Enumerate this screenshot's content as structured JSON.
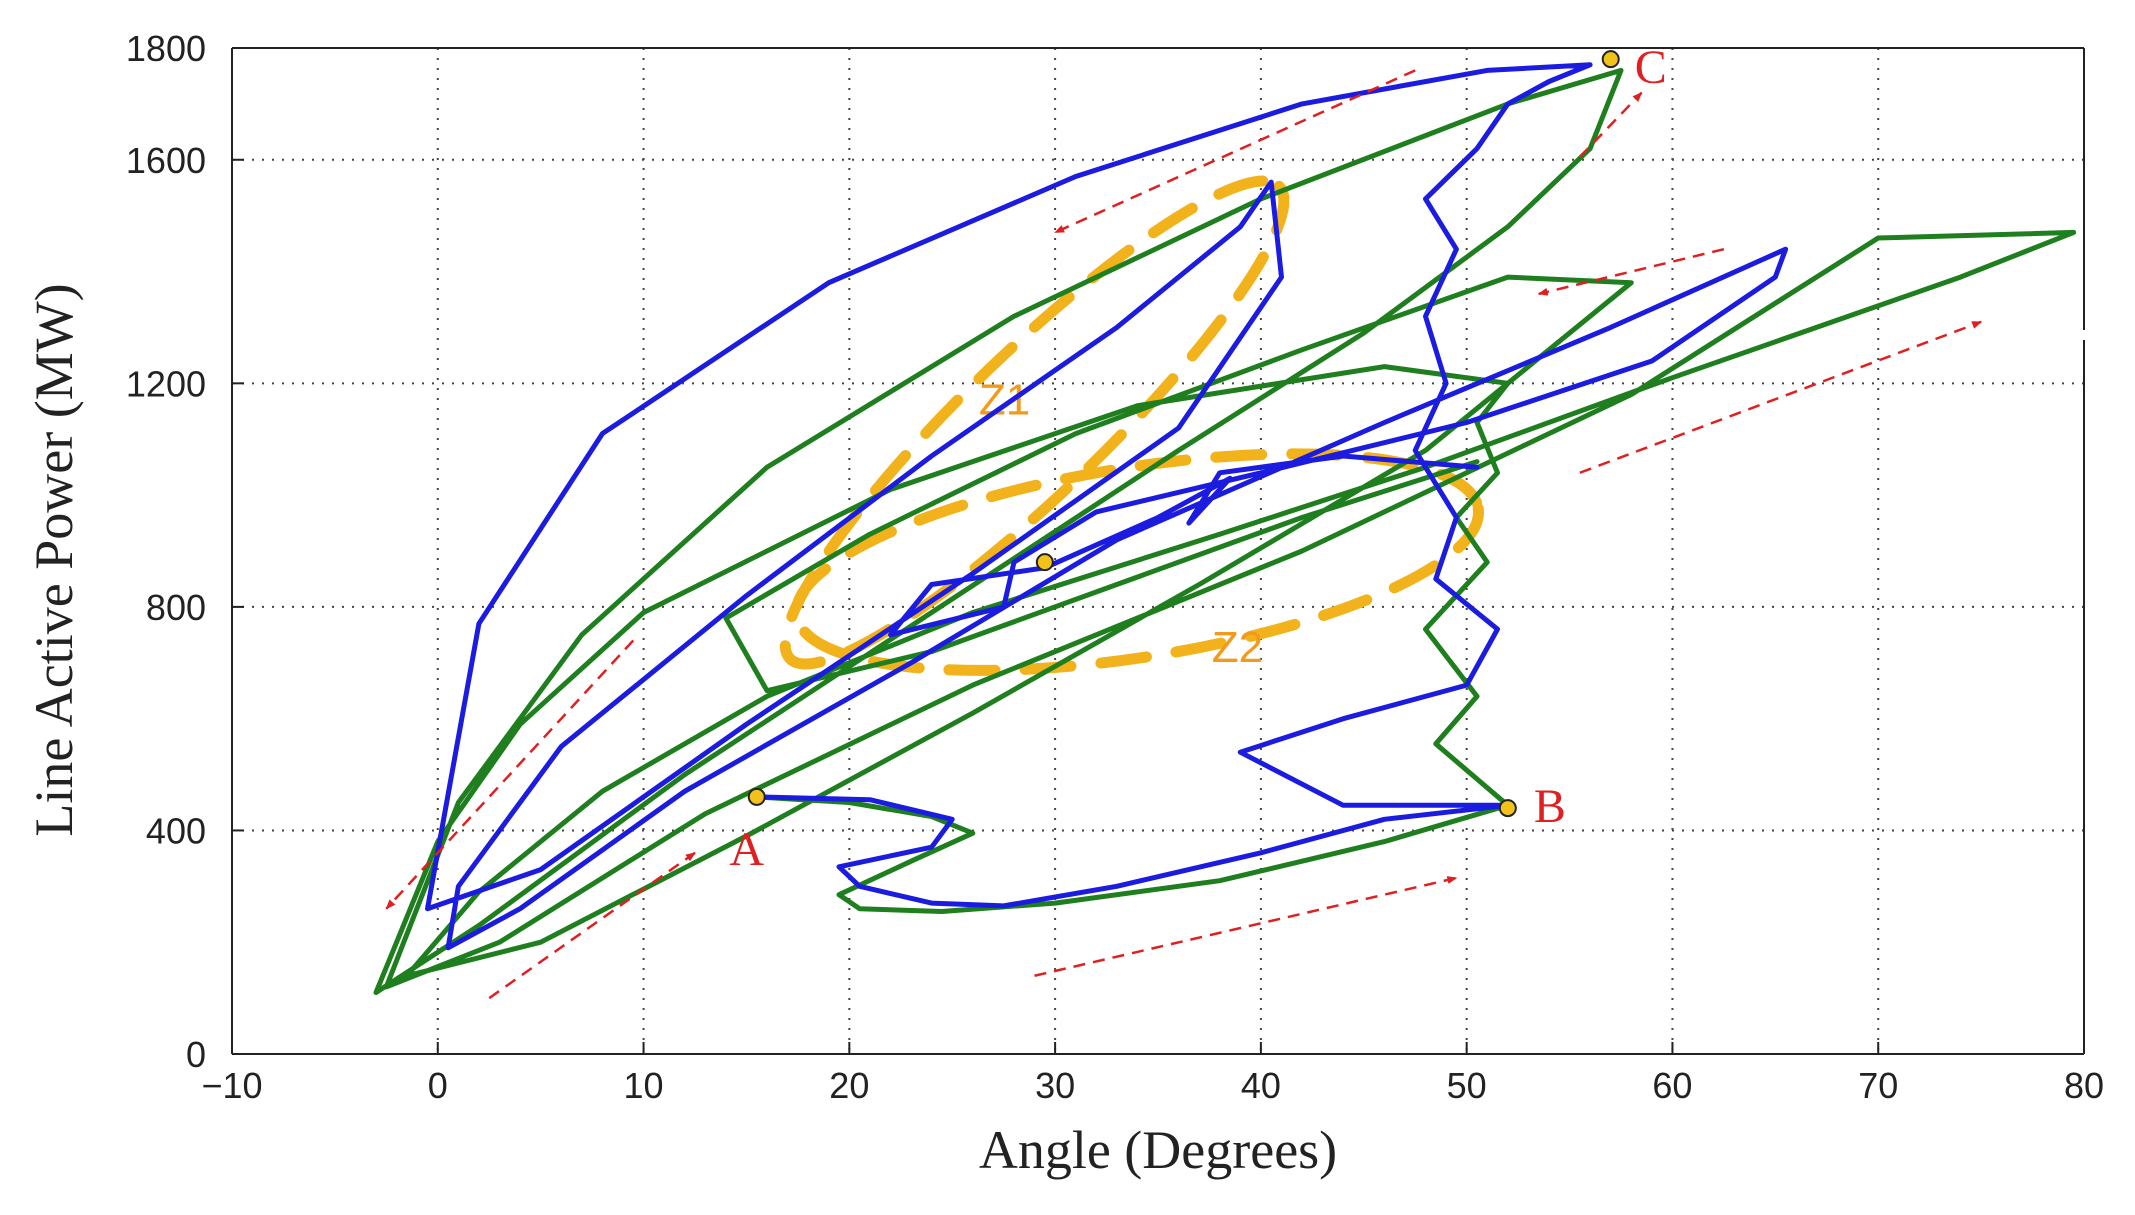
{
  "chart_data": {
    "type": "line",
    "title": "",
    "xlabel": "Angle (Degrees)",
    "ylabel": "Line Active Power (MW)",
    "xlim": [
      -10,
      80
    ],
    "ylim": [
      0,
      1800
    ],
    "grid": true,
    "x_ticks": [
      -10,
      0,
      10,
      20,
      30,
      40,
      50,
      60,
      70,
      80
    ],
    "y_ticks": [
      0,
      400,
      800,
      1200,
      1600,
      1800
    ],
    "x_tick_labels": [
      "−10",
      "0",
      "10",
      "20",
      "30",
      "40",
      "50",
      "60",
      "70",
      "80"
    ],
    "y_tick_labels": [
      "0",
      "400",
      "800",
      "1200",
      "1600",
      "1800"
    ],
    "colors": {
      "green_series": "#1f7f1f",
      "blue_series": "#1c1ce0",
      "zones": "#f2b21c",
      "zone_labels": "#f29a1c",
      "arrows": "#e02020",
      "point_labels": "#e02020",
      "markers": "#f2c21c",
      "grid": "#444444"
    },
    "series": [
      {
        "name": "green",
        "x": [
          15.5,
          20.0,
          24.0,
          26.0,
          23.0,
          19.5,
          20.5,
          24.5,
          30.0,
          38.0,
          46.0,
          52.0,
          48.5,
          50.5,
          48.0,
          51.0,
          49.5,
          51.5,
          50.5,
          52.0,
          46.0,
          34.0,
          22.0,
          10.0,
          4.0,
          0.0,
          -3.0,
          2.0,
          12.0,
          24.0,
          36.0,
          45.0,
          52.0,
          56.0,
          57.5,
          52.0,
          40.0,
          28.0,
          16.0,
          7.0,
          1.0,
          -2.5,
          3.0,
          13.0,
          26.0,
          42.0,
          58.0,
          70.0,
          79.5,
          74.0,
          60.0,
          48.0,
          38.0,
          26.0,
          16.0,
          8.0,
          2.0,
          -1.5,
          5.0,
          15.0,
          26.0,
          37.0,
          48.0,
          58.0,
          52.0,
          42.0,
          31.0,
          21.0,
          14.0,
          16.0,
          24.0,
          33.0,
          42.0,
          50.5
        ],
        "y": [
          460,
          450,
          425,
          395,
          345,
          285,
          260,
          255,
          270,
          310,
          380,
          445,
          555,
          640,
          760,
          880,
          960,
          1040,
          1130,
          1200,
          1230,
          1160,
          1010,
          790,
          590,
          380,
          110,
          230,
          500,
          790,
          1080,
          1290,
          1480,
          1620,
          1760,
          1700,
          1530,
          1320,
          1050,
          750,
          450,
          120,
          200,
          430,
          660,
          900,
          1180,
          1460,
          1470,
          1390,
          1210,
          1050,
          930,
          790,
          640,
          470,
          290,
          140,
          200,
          390,
          610,
          840,
          1080,
          1380,
          1390,
          1260,
          1110,
          930,
          780,
          650,
          720,
          840,
          960,
          1060
        ]
      },
      {
        "name": "blue",
        "x": [
          15.5,
          21.0,
          25.0,
          24.0,
          19.5,
          20.5,
          24.0,
          27.5,
          33.0,
          40.0,
          46.0,
          52.0,
          44.0,
          39.0,
          44.0,
          50.0,
          51.5,
          48.5,
          49.5,
          47.5,
          49.0,
          48.0,
          49.5,
          48.0,
          50.5,
          52.0,
          54.0,
          56.0,
          51.0,
          42.0,
          31.0,
          19.0,
          8.0,
          2.0,
          -0.5,
          5.0,
          15.0,
          26.0,
          36.0,
          41.0,
          40.5,
          39.0,
          33.0,
          24.0,
          15.0,
          6.0,
          1.0,
          0.5,
          4.0,
          12.0,
          23.0,
          33.0,
          46.0,
          57.0,
          65.5,
          65.0,
          59.0,
          50.0,
          40.0,
          32.0,
          28.0,
          27.5,
          22.0,
          24.0,
          29.5,
          35.0,
          38.5,
          36.5,
          38.0,
          44.0,
          50.5
        ],
        "y": [
          460,
          455,
          420,
          370,
          335,
          300,
          270,
          265,
          300,
          360,
          420,
          445,
          445,
          540,
          600,
          660,
          760,
          850,
          960,
          1080,
          1200,
          1320,
          1440,
          1530,
          1620,
          1700,
          1740,
          1770,
          1760,
          1700,
          1570,
          1380,
          1110,
          770,
          260,
          330,
          590,
          860,
          1120,
          1390,
          1560,
          1480,
          1300,
          1070,
          820,
          550,
          300,
          190,
          260,
          470,
          700,
          920,
          1130,
          1300,
          1440,
          1390,
          1240,
          1130,
          1040,
          970,
          880,
          800,
          750,
          840,
          870,
          960,
          1030,
          950,
          1040,
          1070,
          1050
        ]
      }
    ],
    "points": [
      {
        "label": "A",
        "x": 15.5,
        "y": 460
      },
      {
        "label": "B",
        "x": 52.0,
        "y": 440
      },
      {
        "label": "C",
        "x": 57.0,
        "y": 1780
      },
      {
        "label": "",
        "x": 29.5,
        "y": 880
      }
    ],
    "zones": [
      {
        "label": "Z1",
        "center_x": 29.0,
        "center_y": 1130
      },
      {
        "label": "Z2",
        "center_x": 34.0,
        "center_y": 880
      }
    ],
    "arrows": [
      {
        "from": [
          2.5,
          100
        ],
        "to": [
          12.5,
          360
        ]
      },
      {
        "from": [
          29.0,
          140
        ],
        "to": [
          49.5,
          315
        ]
      },
      {
        "from": [
          55.5,
          1605
        ],
        "to": [
          58.5,
          1720
        ]
      },
      {
        "from": [
          47.5,
          1760
        ],
        "to": [
          30.0,
          1470
        ]
      },
      {
        "from": [
          62.5,
          1440
        ],
        "to": [
          53.5,
          1360
        ]
      },
      {
        "from": [
          55.5,
          1040
        ],
        "to": [
          75.0,
          1310
        ]
      },
      {
        "from": [
          9.5,
          740
        ],
        "to": [
          -2.5,
          260
        ]
      }
    ]
  }
}
